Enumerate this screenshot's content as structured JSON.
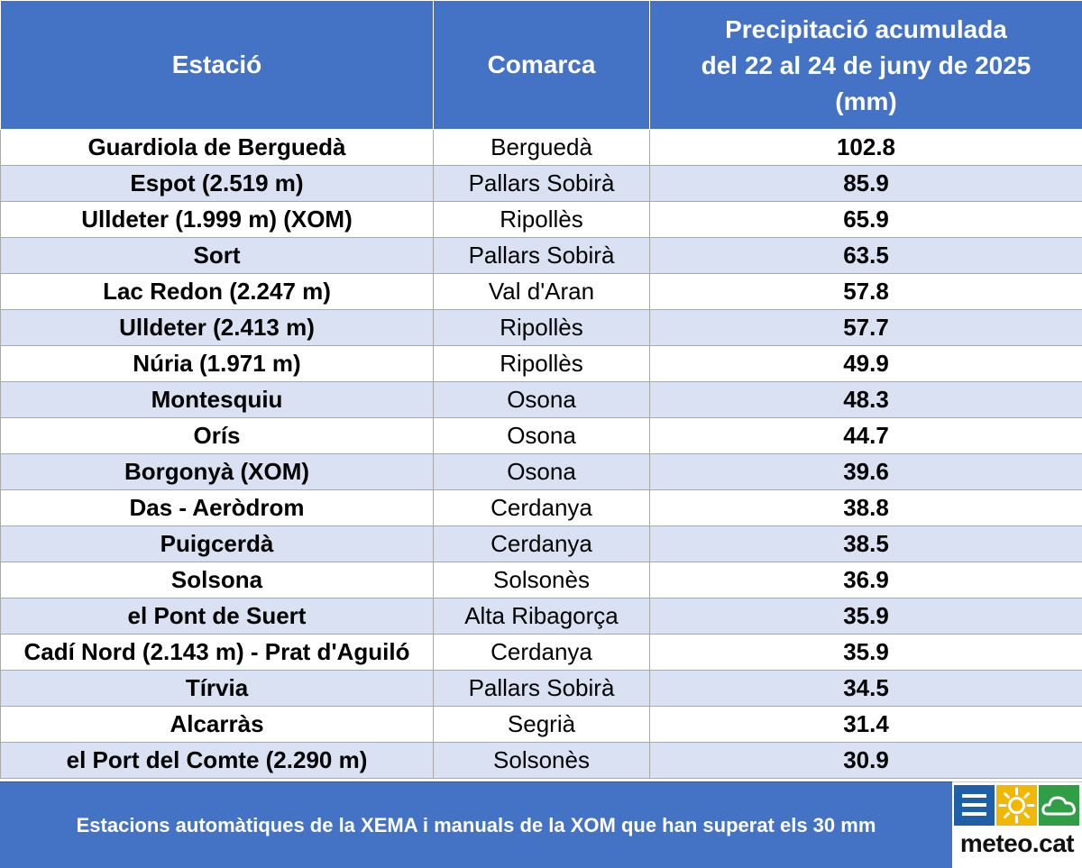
{
  "chart_data": {
    "type": "table",
    "columns": [
      "Estació",
      "Comarca",
      "Precipitació acumulada del 22 al 24 de juny de 2025 (mm)"
    ],
    "header_lines": [
      "Precipitació acumulada",
      "del 22 al 24 de juny de 2025",
      "(mm)"
    ],
    "rows": [
      {
        "station": "Guardiola de Berguedà",
        "comarca": "Berguedà",
        "value": "102.8"
      },
      {
        "station": "Espot (2.519 m)",
        "comarca": "Pallars Sobirà",
        "value": "85.9"
      },
      {
        "station": "Ulldeter (1.999 m) (XOM)",
        "comarca": "Ripollès",
        "value": "65.9"
      },
      {
        "station": "Sort",
        "comarca": "Pallars Sobirà",
        "value": "63.5"
      },
      {
        "station": "Lac Redon (2.247 m)",
        "comarca": "Val d'Aran",
        "value": "57.8"
      },
      {
        "station": "Ulldeter (2.413 m)",
        "comarca": "Ripollès",
        "value": "57.7"
      },
      {
        "station": "Núria (1.971 m)",
        "comarca": "Ripollès",
        "value": "49.9"
      },
      {
        "station": "Montesquiu",
        "comarca": "Osona",
        "value": "48.3"
      },
      {
        "station": "Orís",
        "comarca": "Osona",
        "value": "44.7"
      },
      {
        "station": "Borgonyà (XOM)",
        "comarca": "Osona",
        "value": "39.6"
      },
      {
        "station": "Das - Aeròdrom",
        "comarca": "Cerdanya",
        "value": "38.8"
      },
      {
        "station": "Puigcerdà",
        "comarca": "Cerdanya",
        "value": "38.5"
      },
      {
        "station": "Solsona",
        "comarca": "Solsonès",
        "value": "36.9"
      },
      {
        "station": "el Pont de Suert",
        "comarca": "Alta Ribagorça",
        "value": "35.9"
      },
      {
        "station": "Cadí Nord (2.143 m) - Prat d'Aguiló",
        "comarca": "Cerdanya",
        "value": "35.9"
      },
      {
        "station": "Tírvia",
        "comarca": "Pallars Sobirà",
        "value": "34.5"
      },
      {
        "station": "Alcarràs",
        "comarca": "Segrià",
        "value": "31.4"
      },
      {
        "station": "el Port del Comte (2.290 m)",
        "comarca": "Solsonès",
        "value": "30.9"
      }
    ]
  },
  "footer": {
    "caption": "Estacions automàtiques de la XEMA i manuals de la XOM que han superat els 30 mm",
    "logo_text": "meteo.cat",
    "logo_icons": [
      "menu-icon",
      "sun-icon",
      "cloud-icon"
    ]
  },
  "colors": {
    "header_bg": "#4472C4",
    "band_bg": "#D9E1F2",
    "text": "#000000",
    "header_text": "#FFFFFF"
  }
}
